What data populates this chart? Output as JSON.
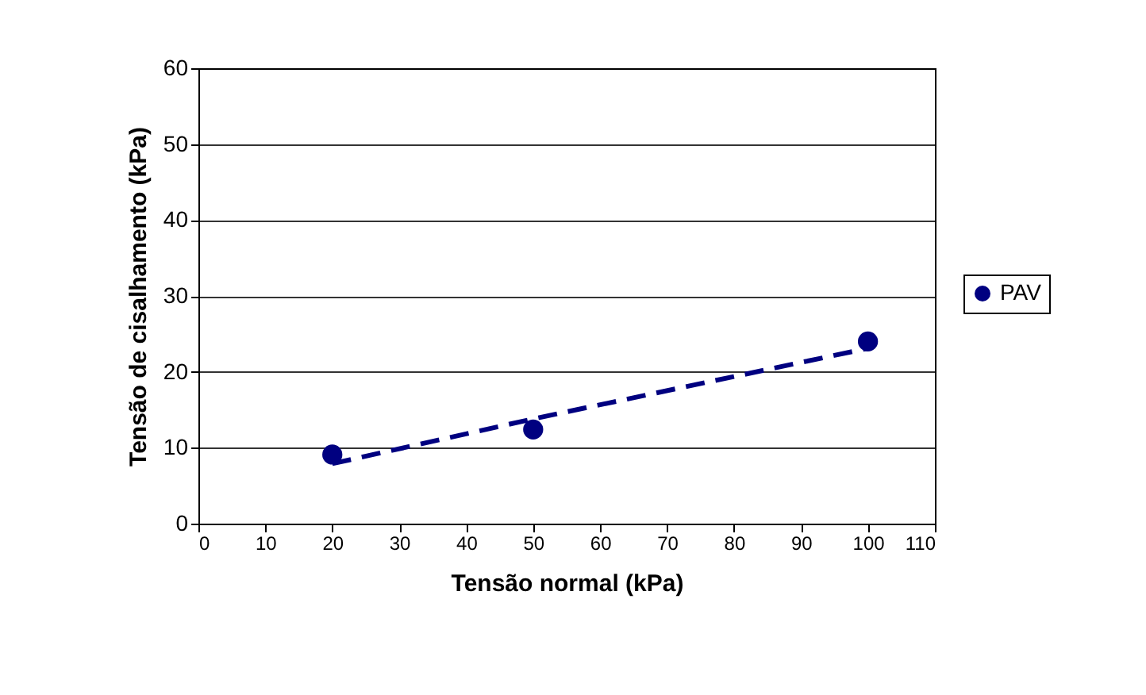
{
  "chart_data": {
    "type": "scatter",
    "xlabel": "Tensão normal (kPa)",
    "ylabel": "Tensão de cisalhamento (kPa)",
    "x": [
      20,
      50,
      100
    ],
    "series": [
      {
        "name": "PAV",
        "color": "#000080",
        "marker": "circle",
        "values": [
          9.1,
          12.4,
          24.0
        ]
      },
      {
        "type": "line",
        "color": "#000080",
        "line_style": "dashed",
        "marker": "none",
        "values": [
          7.9,
          13.8,
          23.1
        ]
      }
    ],
    "xlim": [
      0,
      110
    ],
    "xticks": [
      0,
      10,
      20,
      30,
      40,
      50,
      60,
      70,
      80,
      90,
      100,
      110
    ],
    "ylim": [
      0,
      60
    ],
    "yticks": [
      0,
      10,
      20,
      30,
      40,
      50,
      60
    ],
    "grid": "y",
    "legend": "right"
  }
}
